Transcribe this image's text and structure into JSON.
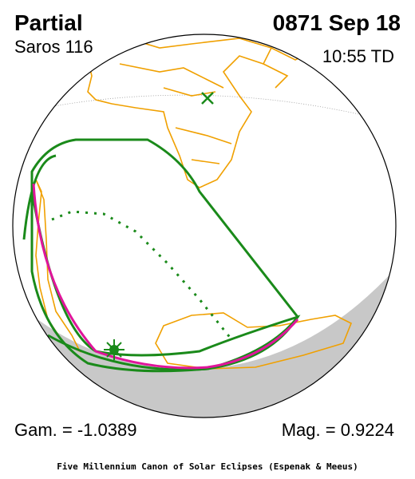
{
  "header": {
    "title": "Partial",
    "saros": "Saros 116",
    "date": "0871 Sep 18",
    "time": "10:55 TD"
  },
  "footer": {
    "gamma": "Gam. = -1.0389",
    "magnitude": "Mag. = 0.9224",
    "credit": "Five Millennium Canon of Solar Eclipses (Espenak & Meeus)"
  }
}
